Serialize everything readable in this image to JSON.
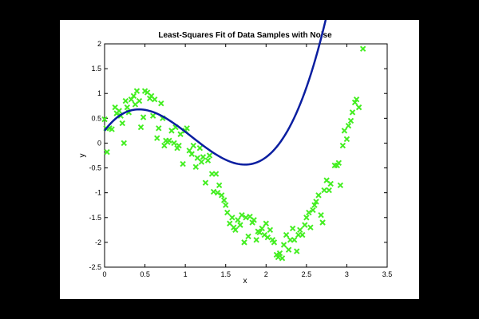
{
  "chart_data": {
    "type": "scatter",
    "title": "Least-Squares Fit of Data Samples with Noise",
    "xlabel": "x",
    "ylabel": "y",
    "xlim": [
      0,
      3.5
    ],
    "ylim": [
      -2.5,
      2
    ],
    "grid": false,
    "x_ticks": [
      "0",
      "0.5",
      "1",
      "1.5",
      "2",
      "2.5",
      "3",
      "3.5"
    ],
    "y_ticks": [
      "2",
      "1.5",
      "1",
      "0.5",
      "0",
      "-0.5",
      "-1",
      "-1.5",
      "-2",
      "-2.5"
    ],
    "series": [
      {
        "kind": "scatter",
        "marker": "x",
        "color": "#44ee22",
        "points": [
          [
            0.0,
            0.48
          ],
          [
            0.02,
            0.3
          ],
          [
            0.03,
            -0.18
          ],
          [
            0.06,
            0.3
          ],
          [
            0.09,
            0.28
          ],
          [
            0.13,
            0.72
          ],
          [
            0.15,
            0.6
          ],
          [
            0.18,
            0.65
          ],
          [
            0.2,
            0.55
          ],
          [
            0.22,
            0.4
          ],
          [
            0.24,
            0.0
          ],
          [
            0.26,
            0.85
          ],
          [
            0.28,
            0.72
          ],
          [
            0.3,
            0.62
          ],
          [
            0.33,
            0.88
          ],
          [
            0.36,
            0.95
          ],
          [
            0.38,
            0.78
          ],
          [
            0.4,
            1.05
          ],
          [
            0.43,
            0.85
          ],
          [
            0.45,
            0.32
          ],
          [
            0.48,
            0.52
          ],
          [
            0.5,
            1.05
          ],
          [
            0.53,
            1.02
          ],
          [
            0.56,
            0.9
          ],
          [
            0.58,
            0.95
          ],
          [
            0.6,
            0.55
          ],
          [
            0.62,
            0.88
          ],
          [
            0.65,
            0.1
          ],
          [
            0.67,
            0.3
          ],
          [
            0.7,
            0.8
          ],
          [
            0.72,
            0.5
          ],
          [
            0.74,
            -0.05
          ],
          [
            0.76,
            0.05
          ],
          [
            0.78,
            0.02
          ],
          [
            0.8,
            0.05
          ],
          [
            0.83,
            0.25
          ],
          [
            0.86,
            0.0
          ],
          [
            0.88,
            0.32
          ],
          [
            0.9,
            -0.1
          ],
          [
            0.92,
            -0.05
          ],
          [
            0.94,
            0.18
          ],
          [
            0.97,
            -0.42
          ],
          [
            1.0,
            0.25
          ],
          [
            1.02,
            0.3
          ],
          [
            1.05,
            -0.15
          ],
          [
            1.08,
            -0.22
          ],
          [
            1.1,
            -0.05
          ],
          [
            1.13,
            -0.48
          ],
          [
            1.15,
            -0.3
          ],
          [
            1.18,
            -0.1
          ],
          [
            1.2,
            -0.38
          ],
          [
            1.22,
            -0.28
          ],
          [
            1.25,
            -0.8
          ],
          [
            1.28,
            -0.35
          ],
          [
            1.3,
            -0.25
          ],
          [
            1.33,
            -0.62
          ],
          [
            1.35,
            -0.98
          ],
          [
            1.38,
            -0.62
          ],
          [
            1.4,
            -1.0
          ],
          [
            1.42,
            -0.85
          ],
          [
            1.45,
            -1.05
          ],
          [
            1.48,
            -1.15
          ],
          [
            1.5,
            -1.25
          ],
          [
            1.52,
            -1.4
          ],
          [
            1.55,
            -1.62
          ],
          [
            1.58,
            -1.5
          ],
          [
            1.6,
            -1.7
          ],
          [
            1.62,
            -1.75
          ],
          [
            1.65,
            -1.55
          ],
          [
            1.68,
            -1.65
          ],
          [
            1.7,
            -1.45
          ],
          [
            1.73,
            -2.0
          ],
          [
            1.75,
            -1.5
          ],
          [
            1.78,
            -1.88
          ],
          [
            1.8,
            -1.48
          ],
          [
            1.83,
            -1.6
          ],
          [
            1.85,
            -1.55
          ],
          [
            1.88,
            -1.95
          ],
          [
            1.9,
            -1.78
          ],
          [
            1.92,
            -1.8
          ],
          [
            1.95,
            -1.72
          ],
          [
            1.98,
            -1.85
          ],
          [
            2.0,
            -1.62
          ],
          [
            2.02,
            -1.9
          ],
          [
            2.05,
            -1.75
          ],
          [
            2.08,
            -1.95
          ],
          [
            2.1,
            -2.0
          ],
          [
            2.13,
            -2.25
          ],
          [
            2.15,
            -2.3
          ],
          [
            2.17,
            -2.22
          ],
          [
            2.2,
            -2.32
          ],
          [
            2.22,
            -2.05
          ],
          [
            2.25,
            -1.85
          ],
          [
            2.28,
            -2.15
          ],
          [
            2.3,
            -1.95
          ],
          [
            2.33,
            -1.72
          ],
          [
            2.35,
            -1.95
          ],
          [
            2.38,
            -2.18
          ],
          [
            2.4,
            -1.85
          ],
          [
            2.42,
            -1.75
          ],
          [
            2.45,
            -1.85
          ],
          [
            2.48,
            -1.65
          ],
          [
            2.5,
            -1.5
          ],
          [
            2.53,
            -1.4
          ],
          [
            2.55,
            -1.7
          ],
          [
            2.58,
            -1.35
          ],
          [
            2.6,
            -1.25
          ],
          [
            2.62,
            -1.18
          ],
          [
            2.65,
            -1.05
          ],
          [
            2.68,
            -1.45
          ],
          [
            2.7,
            -1.6
          ],
          [
            2.72,
            -0.95
          ],
          [
            2.75,
            -0.75
          ],
          [
            2.78,
            -0.95
          ],
          [
            2.8,
            -0.82
          ],
          [
            2.85,
            -0.45
          ],
          [
            2.88,
            -0.45
          ],
          [
            2.9,
            -0.4
          ],
          [
            2.92,
            -0.85
          ],
          [
            2.95,
            -0.05
          ],
          [
            2.97,
            0.25
          ],
          [
            3.0,
            0.08
          ],
          [
            3.02,
            0.35
          ],
          [
            3.05,
            0.45
          ],
          [
            3.07,
            0.62
          ],
          [
            3.1,
            0.82
          ],
          [
            3.12,
            0.88
          ],
          [
            3.15,
            0.72
          ],
          [
            3.2,
            1.9
          ]
        ]
      },
      {
        "kind": "line",
        "color": "#0a1ea0",
        "coefficients": [
          0.25,
          2.193,
          -3.2,
          0.985
        ]
      }
    ]
  }
}
